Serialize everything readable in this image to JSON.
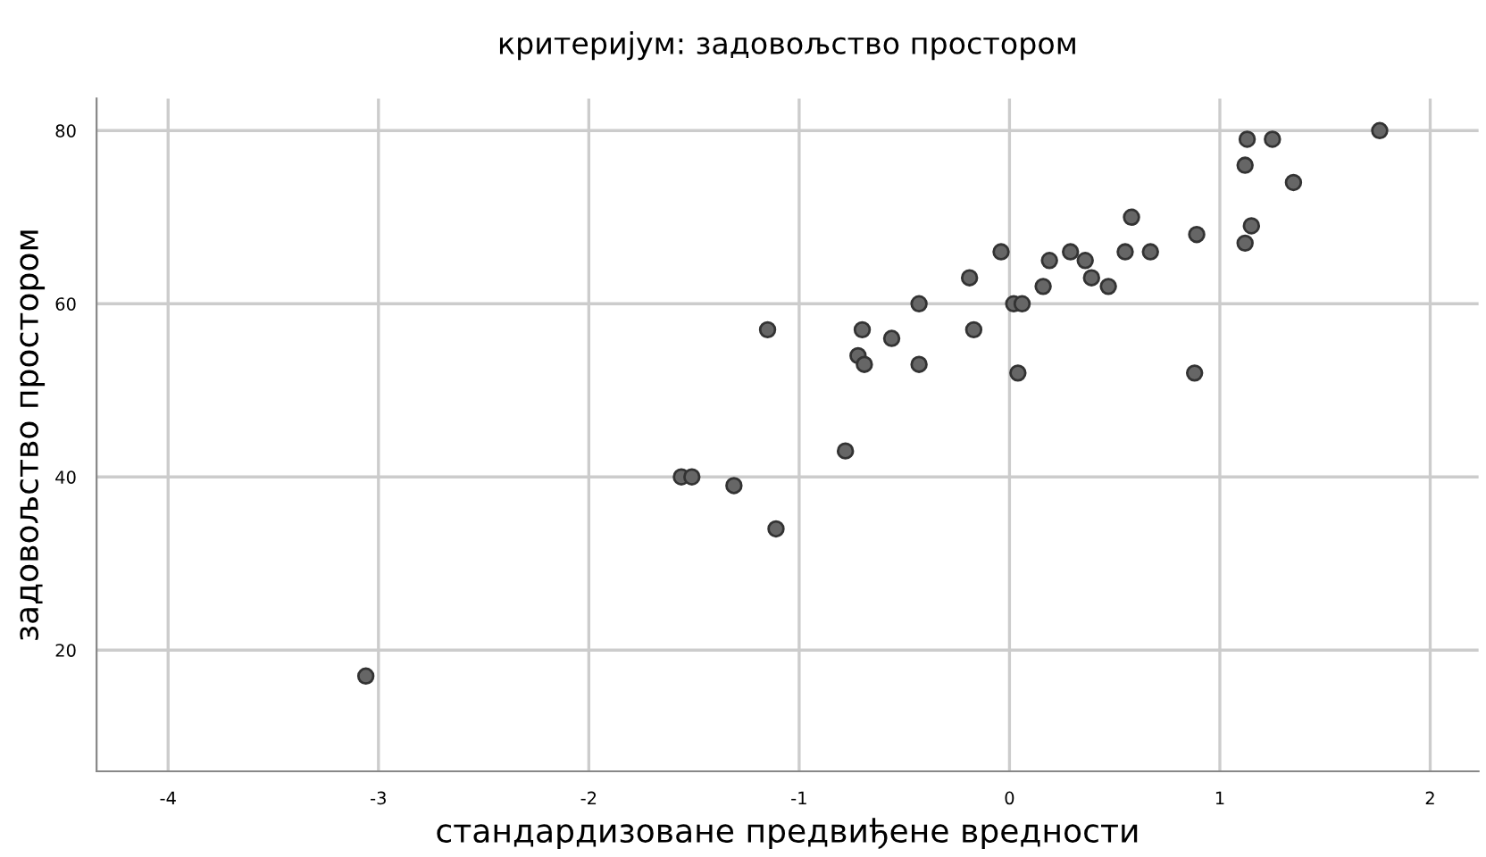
{
  "chart_data": {
    "type": "scatter",
    "title": "критеријум: задовољство простором",
    "xlabel": "стандардизоване предвиђене вредности",
    "ylabel": "задовољство простором",
    "x": [
      -3.06,
      -1.56,
      -1.51,
      -1.31,
      -1.15,
      -1.11,
      -0.78,
      -0.72,
      -0.7,
      -0.69,
      -0.56,
      -0.43,
      -0.43,
      -0.19,
      -0.17,
      -0.04,
      0.02,
      0.06,
      0.04,
      0.16,
      0.19,
      0.29,
      0.36,
      0.39,
      0.47,
      0.55,
      0.58,
      0.67,
      0.88,
      0.89,
      1.12,
      1.12,
      1.13,
      1.15,
      1.25,
      1.35,
      1.76
    ],
    "values": [
      17,
      40,
      40,
      39,
      57,
      34,
      43,
      54,
      57,
      53,
      56,
      60,
      53,
      63,
      57,
      66,
      60,
      60,
      52,
      62,
      65,
      66,
      65,
      63,
      62,
      66,
      70,
      66,
      52,
      68,
      67,
      76,
      79,
      69,
      79,
      74,
      80
    ],
    "color": "#666666",
    "marker": "circle",
    "grid": true,
    "xlim": [
      -4.34,
      2.23
    ],
    "xticks": [
      -4,
      -3,
      -2,
      -1,
      0,
      1,
      2
    ],
    "ylim": [
      6,
      83.7
    ],
    "yticks": [
      20,
      40,
      60,
      80
    ]
  }
}
